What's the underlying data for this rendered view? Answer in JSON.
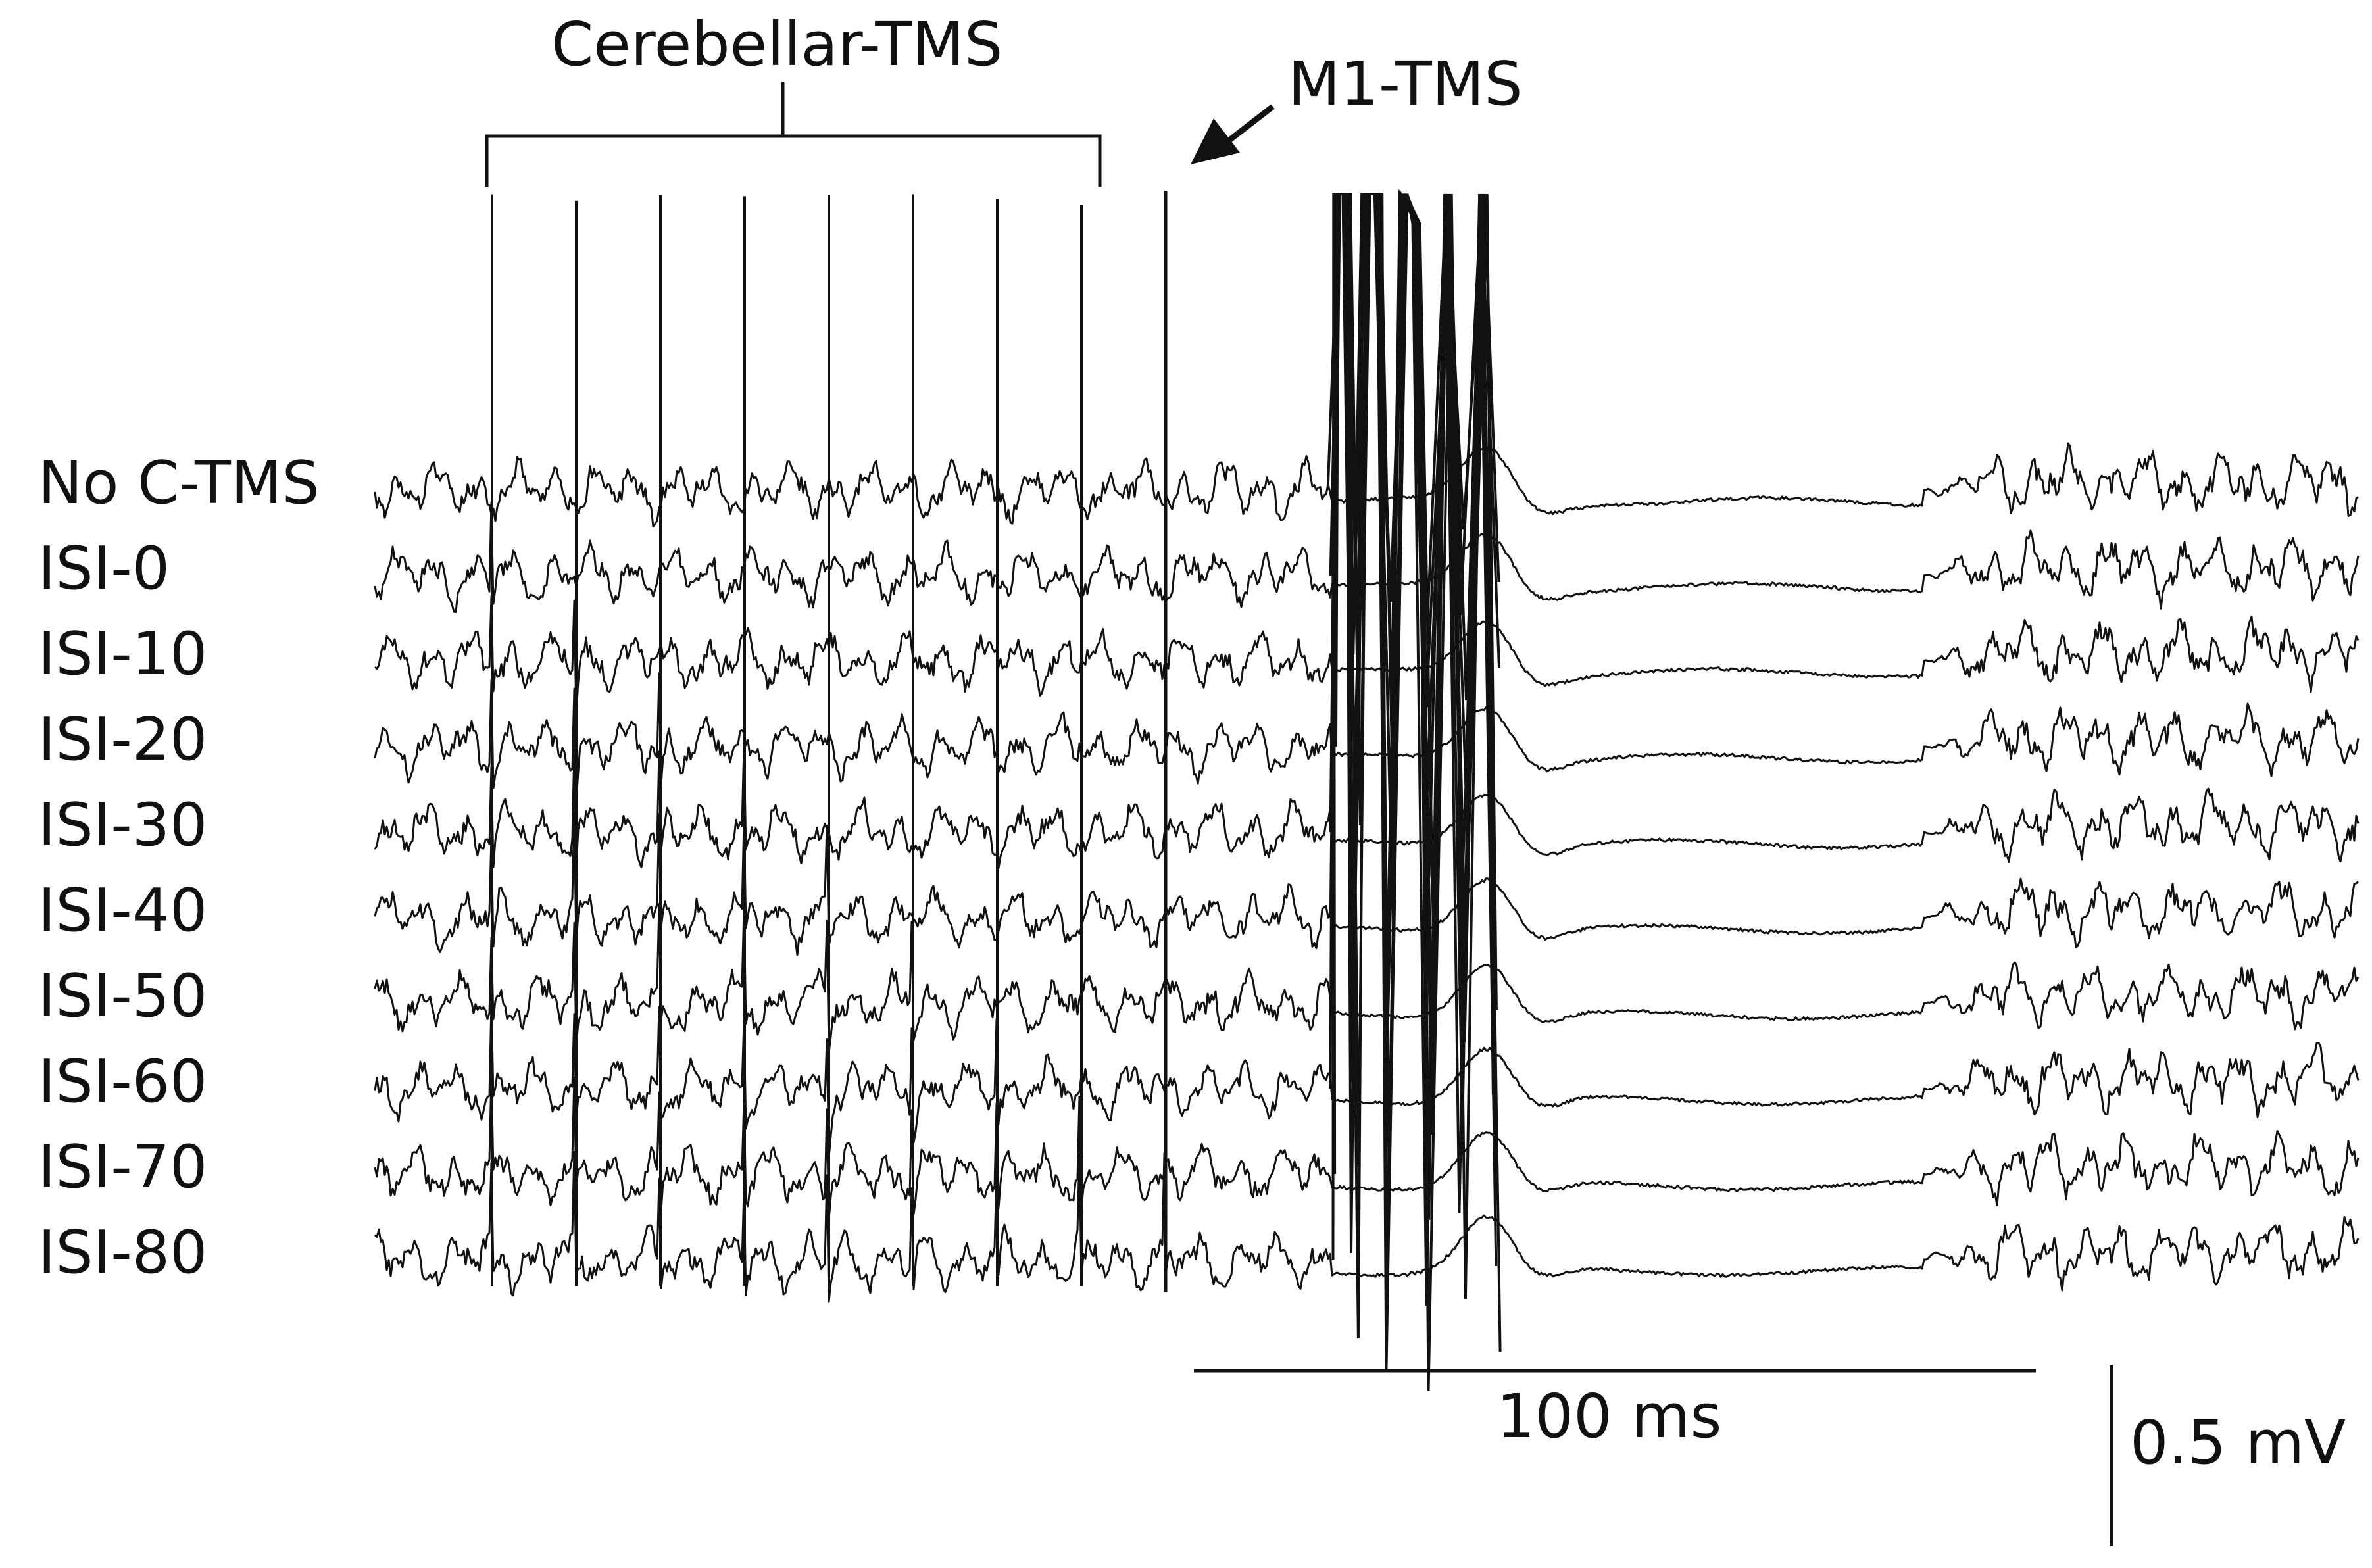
{
  "chart_data": {
    "type": "line",
    "title": "",
    "xlabel": "",
    "ylabel": "",
    "series": [
      {
        "name": "No C-TMS",
        "stim_times_ms": []
      },
      {
        "name": "ISI-0",
        "stim_times_ms": [
          -80
        ]
      },
      {
        "name": "ISI-10",
        "stim_times_ms": [
          -80,
          -70
        ]
      },
      {
        "name": "ISI-20",
        "stim_times_ms": [
          -80,
          -70,
          -60
        ]
      },
      {
        "name": "ISI-30",
        "stim_times_ms": [
          -80,
          -70,
          -60,
          -50
        ]
      },
      {
        "name": "ISI-40",
        "stim_times_ms": [
          -80,
          -70,
          -60,
          -50,
          -40
        ]
      },
      {
        "name": "ISI-50",
        "stim_times_ms": [
          -80,
          -70,
          -60,
          -50,
          -40,
          -30
        ]
      },
      {
        "name": "ISI-60",
        "stim_times_ms": [
          -80,
          -70,
          -60,
          -50,
          -40,
          -30,
          -20
        ]
      },
      {
        "name": "ISI-70",
        "stim_times_ms": [
          -80,
          -70,
          -60,
          -50,
          -40,
          -30,
          -20,
          -10
        ]
      },
      {
        "name": "ISI-80",
        "stim_times_ms": [
          -80,
          -70,
          -60,
          -50,
          -40,
          -30,
          -20,
          -10,
          0
        ]
      }
    ],
    "cerebellar_pulses_ms": [
      -80,
      -70,
      -60,
      -50,
      -40,
      -30,
      -20,
      -10
    ],
    "m1_pulse_ms": 0,
    "mep_latency_ms": 20,
    "silent_period_end_ms": 90,
    "annotations": {
      "cerebellar_label": "Cerebellar-TMS",
      "m1_label": "M1-TMS"
    },
    "scale_bars": {
      "time": {
        "value": 100,
        "label": "100 ms"
      },
      "amplitude": {
        "value": 0.5,
        "label": "0.5 mV"
      }
    }
  }
}
